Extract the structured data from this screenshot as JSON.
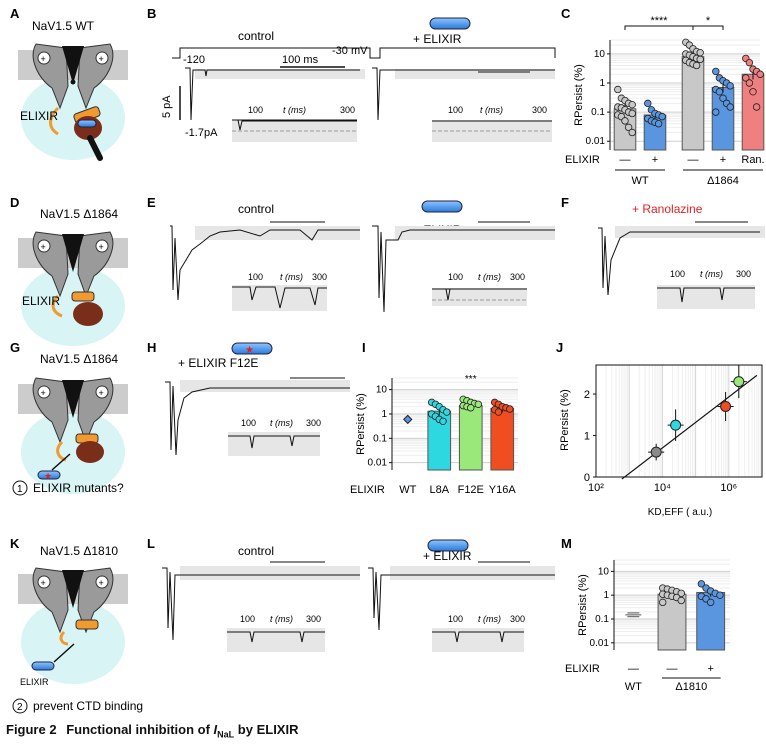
{
  "panels": {
    "A": {
      "letter": "A",
      "title": "NaV1.5 WT",
      "label": "ELIXIR"
    },
    "B": {
      "letter": "B",
      "cond_left": "control",
      "cond_right": "+ ELIXIR",
      "volt_hold": "-120",
      "volt_step": "-30 mV",
      "time_scale": "100 ms",
      "current_scale": "5 pA",
      "inset_current": "-1.7pA",
      "inset_ticks": [
        "100",
        "t (ms)",
        "300"
      ]
    },
    "C": {
      "letter": "C",
      "ylabel": "RPersist (%)",
      "yticks": [
        "10",
        "1",
        "0.1",
        "0.01"
      ],
      "sig_left": "****",
      "sig_right": "*",
      "row_label": "ELIXIR",
      "col_labels": [
        "—",
        "+",
        "—",
        "+",
        "Ran."
      ],
      "group_wt": "WT",
      "group_mut": "Δ1864"
    },
    "D": {
      "letter": "D",
      "title": "NaV1.5 Δ1864",
      "label": "ELIXIR"
    },
    "E": {
      "letter": "E",
      "cond_left": "control",
      "cond_right": "+ ELIXIR",
      "inset_ticks": [
        "100",
        "t (ms)",
        "300"
      ]
    },
    "F": {
      "letter": "F",
      "cond": "+ Ranolazine",
      "inset_ticks": [
        "100",
        "t (ms)",
        "300"
      ]
    },
    "G": {
      "letter": "G",
      "title": "NaV1.5 Δ1864",
      "note_num": "1",
      "note": "ELIXIR mutants?"
    },
    "H": {
      "letter": "H",
      "cond": "+ ELIXIR F12E",
      "inset_ticks": [
        "100",
        "t (ms)",
        "300"
      ]
    },
    "I": {
      "letter": "I",
      "ylabel": "RPersist (%)",
      "yticks": [
        "10",
        "1",
        "0.1",
        "0.01"
      ],
      "sig": "***",
      "row_label": "ELIXIR",
      "col_labels": [
        "WT",
        "L8A",
        "F12E",
        "Y16A"
      ]
    },
    "J": {
      "letter": "J",
      "ylabel": "RPersist (%)",
      "xlabel": "KD,EFF ( a.u.)",
      "yticks": [
        "0",
        "1",
        "2"
      ],
      "xticks": [
        "10²",
        "10⁴",
        "10⁶"
      ]
    },
    "K": {
      "letter": "K",
      "title": "NaV1.5 Δ1810",
      "label": "ELIXIR",
      "note_num": "2",
      "note": "prevent CTD binding"
    },
    "L": {
      "letter": "L",
      "cond_left": "control",
      "cond_right": "+ ELIXIR",
      "inset_ticks": [
        "100",
        "t (ms)",
        "300"
      ]
    },
    "M": {
      "letter": "M",
      "ylabel": "RPersist (%)",
      "yticks": [
        "10",
        "1",
        "0.1",
        "0.01"
      ],
      "row_label": "ELIXIR",
      "col_labels": [
        "—",
        "—",
        "+"
      ],
      "group_wt": "WT",
      "group_mut": "Δ1810"
    }
  },
  "caption": {
    "figure": "Figure 2",
    "text": "Functional inhibition of",
    "symbol": "I",
    "symbol_sub": "NaL",
    "tail": "by ELIXIR"
  },
  "chart_data": [
    {
      "panel": "C",
      "type": "bar",
      "yscale": "log",
      "ylim": [
        0.005,
        30
      ],
      "title": "",
      "ylabel": "RPersist (%)",
      "xlabel": "",
      "categories": [
        "WT control",
        "WT + ELIXIR",
        "Δ1864 control",
        "Δ1864 + ELIXIR",
        "Δ1864 + Ranolazine"
      ],
      "values": [
        0.13,
        0.08,
        8,
        0.7,
        2
      ],
      "points": [
        [
          0.6,
          0.3,
          0.25,
          0.2,
          0.18,
          0.15,
          0.14,
          0.12,
          0.1,
          0.09,
          0.08,
          0.07,
          0.05,
          0.03,
          0.02
        ],
        [
          0.2,
          0.12,
          0.09,
          0.08,
          0.07,
          0.06,
          0.05,
          0.045,
          0.04
        ],
        [
          25,
          20,
          15,
          12,
          11,
          10,
          9,
          8,
          7,
          6.5,
          6,
          5,
          4.5,
          4
        ],
        [
          2.5,
          1.5,
          1.2,
          1,
          0.8,
          0.6,
          0.5,
          0.3,
          0.2,
          0.15,
          0.1
        ],
        [
          7,
          5,
          3,
          2.5,
          2,
          1.5,
          1,
          0.5,
          0.15
        ]
      ]
    },
    {
      "panel": "I",
      "type": "bar",
      "yscale": "log",
      "ylim": [
        0.005,
        30
      ],
      "ylabel": "RPersist (%)",
      "categories": [
        "WT",
        "L8A",
        "F12E",
        "Y16A"
      ],
      "values": [
        0.6,
        1.3,
        2.2,
        1.7
      ],
      "points": [
        [],
        [
          3,
          2.5,
          2,
          1.5,
          1.2,
          1,
          0.8,
          0.6,
          0.5
        ],
        [
          4,
          3.5,
          3,
          2.7,
          2.5,
          2.2,
          2,
          1.8
        ],
        [
          3,
          2.5,
          2,
          1.8,
          1.6,
          1.5,
          1.2
        ]
      ]
    },
    {
      "panel": "J",
      "type": "scatter",
      "xscale": "log",
      "xlim": [
        100,
        10000000
      ],
      "ylim": [
        0,
        2.7
      ],
      "xlabel": "KD,EFF ( a.u.)",
      "ylabel": "RPersist (%)",
      "series": [
        {
          "name": "WT",
          "x": [
            6500
          ],
          "y": [
            0.6
          ],
          "err": [
            0.2
          ]
        },
        {
          "name": "L8A",
          "x": [
            25000
          ],
          "y": [
            1.25
          ],
          "err": [
            0.38
          ]
        },
        {
          "name": "Y16A",
          "x": [
            800000
          ],
          "y": [
            1.7
          ],
          "err": [
            0.35
          ]
        },
        {
          "name": "F12E",
          "x": [
            2000000
          ],
          "y": [
            2.3
          ],
          "err": [
            0.4
          ]
        }
      ],
      "fit_line": {
        "x": [
          600,
          7000000
        ],
        "y": [
          -0.05,
          2.45
        ]
      }
    },
    {
      "panel": "M",
      "type": "bar",
      "yscale": "log",
      "ylim": [
        0.005,
        30
      ],
      "ylabel": "RPersist (%)",
      "categories": [
        "WT",
        "Δ1810 control",
        "Δ1810 + ELIXIR"
      ],
      "values": [
        0.15,
        1.1,
        1.3
      ],
      "points": [
        [],
        [
          2,
          1.8,
          1.6,
          1.4,
          1.2,
          1.1,
          1,
          0.9,
          0.8,
          0.6,
          0.5
        ],
        [
          3,
          2,
          1.5,
          1.2,
          1,
          0.9,
          0.7,
          0.5
        ]
      ]
    }
  ],
  "colors": {
    "wt_bar": "#c8c8c8",
    "elixir_bar": "#5a96e0",
    "ran_bar": "#f08080",
    "l8a": "#2ed8e0",
    "f12e": "#9ae87a",
    "y16a": "#f04e20",
    "cell_fill": "#d8f4f4",
    "membrane": "#cccccc",
    "ctd": "#7a2e1a",
    "linker": "#f09a30",
    "star": "#e02020",
    "ran_text": "#e02020"
  }
}
